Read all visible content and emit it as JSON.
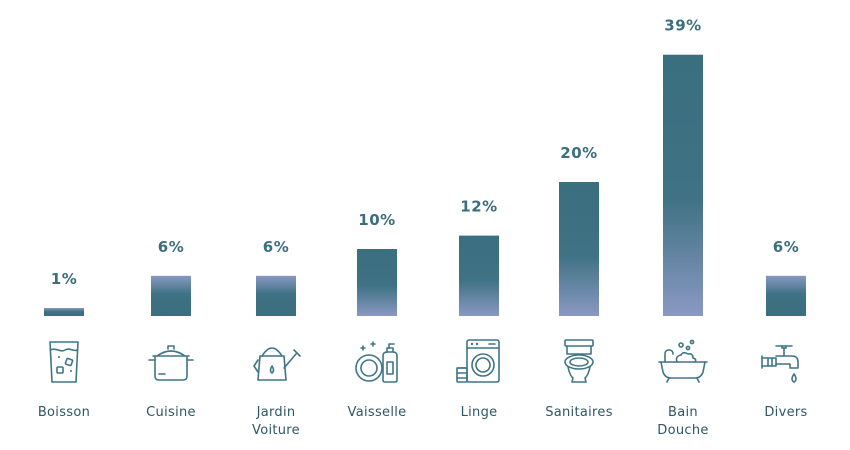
{
  "chart_data": {
    "type": "bar",
    "categories": [
      {
        "label": [
          "Boisson"
        ],
        "icon": "water-glass-icon",
        "value": 1,
        "value_label": "1%",
        "bar_style": "down"
      },
      {
        "label": [
          "Cuisine"
        ],
        "icon": "cooking-pot-icon",
        "value": 6,
        "value_label": "6%",
        "bar_style": "down"
      },
      {
        "label": [
          "Jardin",
          "Voiture"
        ],
        "icon": "watering-can-icon",
        "value": 6,
        "value_label": "6%",
        "bar_style": "down"
      },
      {
        "label": [
          "Vaisselle"
        ],
        "icon": "dishes-soap-icon",
        "value": 10,
        "value_label": "10%",
        "bar_style": "up"
      },
      {
        "label": [
          "Linge"
        ],
        "icon": "washing-machine-icon",
        "value": 12,
        "value_label": "12%",
        "bar_style": "up"
      },
      {
        "label": [
          "Sanitaires"
        ],
        "icon": "toilet-icon",
        "value": 20,
        "value_label": "20%",
        "bar_style": "up"
      },
      {
        "label": [
          "Bain",
          "Douche"
        ],
        "icon": "bathtub-icon",
        "value": 39,
        "value_label": "39%",
        "bar_style": "up"
      },
      {
        "label": [
          "Divers"
        ],
        "icon": "faucet-icon",
        "value": 6,
        "value_label": "6%",
        "bar_style": "down"
      }
    ],
    "title": "",
    "xlabel": "",
    "ylabel": "",
    "ylim": [
      0,
      40
    ],
    "grid": false,
    "legend": "none",
    "colors": {
      "bar_dark": "#3a6f7f",
      "bar_light": "#8a98c2",
      "value_text": "#3b6e7e",
      "label_text": "#2d5766",
      "icon": "#3f7585"
    }
  }
}
